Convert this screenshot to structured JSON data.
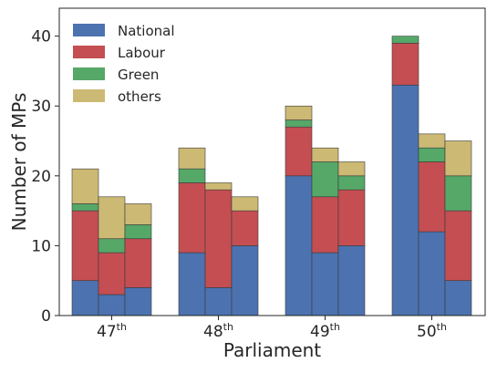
{
  "chart_data": {
    "type": "bar",
    "stacked": true,
    "xlabel": "Parliament",
    "ylabel": "Number of MPs",
    "ylim": [
      0,
      44
    ],
    "yticks": [
      0,
      10,
      20,
      30,
      40
    ],
    "grid": false,
    "legend_position": "top-left",
    "groups": [
      {
        "label": "47",
        "suffix": "th"
      },
      {
        "label": "48",
        "suffix": "th"
      },
      {
        "label": "49",
        "suffix": "th"
      },
      {
        "label": "50",
        "suffix": "th"
      }
    ],
    "bars_per_group": 3,
    "series": [
      {
        "name": "National",
        "color": "#4c72b0",
        "values": [
          5,
          3,
          4,
          9,
          4,
          10,
          20,
          9,
          10,
          33,
          12,
          5
        ]
      },
      {
        "name": "Labour",
        "color": "#c44e52",
        "values": [
          10,
          6,
          7,
          10,
          14,
          5,
          7,
          8,
          8,
          6,
          10,
          10
        ]
      },
      {
        "name": "Green",
        "color": "#55a868",
        "values": [
          1,
          2,
          2,
          2,
          0,
          0,
          1,
          5,
          2,
          1,
          2,
          5
        ]
      },
      {
        "name": "others",
        "color": "#ccb974",
        "values": [
          5,
          6,
          3,
          3,
          1,
          2,
          2,
          2,
          2,
          0,
          2,
          5
        ]
      }
    ]
  }
}
